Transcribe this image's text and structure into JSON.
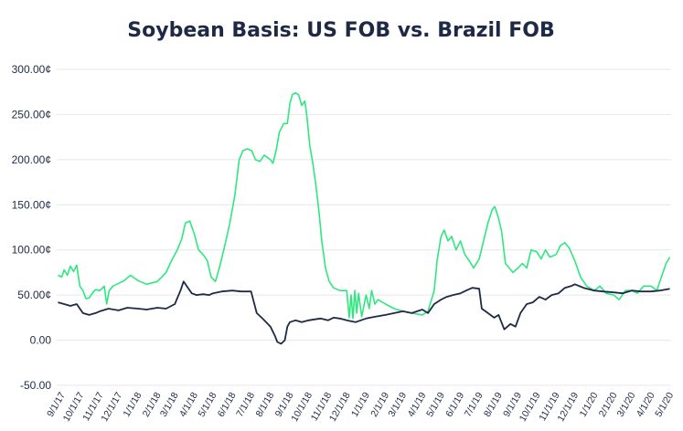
{
  "chart_data": {
    "type": "line",
    "title": "Soybean Basis: US FOB vs. Brazil FOB",
    "xlabel": "",
    "ylabel": "",
    "ylim": [
      -50,
      300
    ],
    "yticks": [
      "-50.00",
      "0.00",
      "50.00¢",
      "100.00¢",
      "150.00¢",
      "200.00¢",
      "250.00¢",
      "300.00¢"
    ],
    "ytick_values": [
      -50,
      0,
      50,
      100,
      150,
      200,
      250,
      300
    ],
    "xticks": [
      "9/1/17",
      "10/1/17",
      "11/1/17",
      "12/1/17",
      "1/1/18",
      "2/1/18",
      "3/1/18",
      "4/1/18",
      "5/1/18",
      "6/1/18",
      "7/1/18",
      "8/1/18",
      "9/1/18",
      "10/1/18",
      "11/1/18",
      "12/1/18",
      "1/1/19",
      "2/1/19",
      "3/1/19",
      "4/1/19",
      "5/1/19",
      "6/1/19",
      "7/1/19",
      "8/1/19",
      "9/1/19",
      "10/1/19",
      "11/1/19",
      "12/1/19",
      "1/1/20",
      "2/1/20",
      "3/1/20",
      "4/1/20",
      "5/1/20"
    ],
    "grid": true,
    "legend": "none",
    "colors": {
      "green_series": "#2ee87f",
      "navy_series": "#1e2a45"
    },
    "series": [
      {
        "color": "#2ee87f",
        "values": [
          [
            "2017-08-26",
            72
          ],
          [
            "2017-09-01",
            70
          ],
          [
            "2017-09-05",
            78
          ],
          [
            "2017-09-10",
            72
          ],
          [
            "2017-09-15",
            82
          ],
          [
            "2017-09-20",
            76
          ],
          [
            "2017-09-25",
            83
          ],
          [
            "2017-09-30",
            60
          ],
          [
            "2017-10-05",
            55
          ],
          [
            "2017-10-10",
            46
          ],
          [
            "2017-10-15",
            47
          ],
          [
            "2017-10-20",
            52
          ],
          [
            "2017-10-25",
            56
          ],
          [
            "2017-11-01",
            55
          ],
          [
            "2017-11-08",
            60
          ],
          [
            "2017-11-12",
            40
          ],
          [
            "2017-11-16",
            55
          ],
          [
            "2017-11-22",
            60
          ],
          [
            "2017-12-01",
            63
          ],
          [
            "2017-12-10",
            66
          ],
          [
            "2017-12-20",
            72
          ],
          [
            "2018-01-01",
            66
          ],
          [
            "2018-01-15",
            62
          ],
          [
            "2018-02-01",
            65
          ],
          [
            "2018-02-15",
            75
          ],
          [
            "2018-02-25",
            90
          ],
          [
            "2018-03-05",
            100
          ],
          [
            "2018-03-12",
            112
          ],
          [
            "2018-03-18",
            130
          ],
          [
            "2018-03-25",
            132
          ],
          [
            "2018-04-01",
            118
          ],
          [
            "2018-04-08",
            100
          ],
          [
            "2018-04-15",
            95
          ],
          [
            "2018-04-22",
            88
          ],
          [
            "2018-04-28",
            70
          ],
          [
            "2018-05-05",
            65
          ],
          [
            "2018-05-12",
            82
          ],
          [
            "2018-05-20",
            105
          ],
          [
            "2018-05-28",
            130
          ],
          [
            "2018-06-05",
            160
          ],
          [
            "2018-06-12",
            200
          ],
          [
            "2018-06-18",
            210
          ],
          [
            "2018-06-25",
            212
          ],
          [
            "2018-07-02",
            210
          ],
          [
            "2018-07-08",
            200
          ],
          [
            "2018-07-15",
            198
          ],
          [
            "2018-07-22",
            205
          ],
          [
            "2018-08-01",
            200
          ],
          [
            "2018-08-05",
            196
          ],
          [
            "2018-08-10",
            210
          ],
          [
            "2018-08-15",
            230
          ],
          [
            "2018-08-22",
            240
          ],
          [
            "2018-08-28",
            240
          ],
          [
            "2018-09-01",
            262
          ],
          [
            "2018-09-05",
            272
          ],
          [
            "2018-09-10",
            274
          ],
          [
            "2018-09-15",
            272
          ],
          [
            "2018-09-20",
            260
          ],
          [
            "2018-09-25",
            265
          ],
          [
            "2018-09-28",
            250
          ],
          [
            "2018-10-03",
            215
          ],
          [
            "2018-10-08",
            195
          ],
          [
            "2018-10-13",
            170
          ],
          [
            "2018-10-18",
            140
          ],
          [
            "2018-10-22",
            110
          ],
          [
            "2018-10-28",
            80
          ],
          [
            "2018-11-03",
            65
          ],
          [
            "2018-11-10",
            58
          ],
          [
            "2018-11-20",
            55
          ],
          [
            "2018-12-01",
            55
          ],
          [
            "2018-12-05",
            25
          ],
          [
            "2018-12-08",
            50
          ],
          [
            "2018-12-11",
            24
          ],
          [
            "2018-12-14",
            55
          ],
          [
            "2018-12-17",
            30
          ],
          [
            "2018-12-20",
            52
          ],
          [
            "2018-12-25",
            26
          ],
          [
            "2019-01-01",
            50
          ],
          [
            "2019-01-06",
            35
          ],
          [
            "2019-01-10",
            55
          ],
          [
            "2019-01-15",
            40
          ],
          [
            "2019-01-20",
            45
          ],
          [
            "2019-02-01",
            40
          ],
          [
            "2019-02-15",
            35
          ],
          [
            "2019-03-01",
            32
          ],
          [
            "2019-03-15",
            30
          ],
          [
            "2019-04-01",
            28
          ],
          [
            "2019-04-10",
            32
          ],
          [
            "2019-04-20",
            55
          ],
          [
            "2019-04-25",
            90
          ],
          [
            "2019-05-01",
            115
          ],
          [
            "2019-05-06",
            122
          ],
          [
            "2019-05-12",
            110
          ],
          [
            "2019-05-18",
            115
          ],
          [
            "2019-05-25",
            100
          ],
          [
            "2019-06-01",
            110
          ],
          [
            "2019-06-08",
            95
          ],
          [
            "2019-06-15",
            88
          ],
          [
            "2019-06-22",
            80
          ],
          [
            "2019-07-01",
            90
          ],
          [
            "2019-07-08",
            110
          ],
          [
            "2019-07-15",
            130
          ],
          [
            "2019-07-22",
            145
          ],
          [
            "2019-07-26",
            148
          ],
          [
            "2019-08-01",
            135
          ],
          [
            "2019-08-06",
            120
          ],
          [
            "2019-08-12",
            85
          ],
          [
            "2019-08-18",
            80
          ],
          [
            "2019-08-24",
            75
          ],
          [
            "2019-09-01",
            80
          ],
          [
            "2019-09-08",
            85
          ],
          [
            "2019-09-15",
            80
          ],
          [
            "2019-09-22",
            100
          ],
          [
            "2019-10-01",
            98
          ],
          [
            "2019-10-08",
            90
          ],
          [
            "2019-10-15",
            100
          ],
          [
            "2019-10-22",
            92
          ],
          [
            "2019-11-01",
            95
          ],
          [
            "2019-11-08",
            105
          ],
          [
            "2019-11-15",
            108
          ],
          [
            "2019-11-22",
            102
          ],
          [
            "2019-12-01",
            88
          ],
          [
            "2019-12-10",
            70
          ],
          [
            "2019-12-20",
            60
          ],
          [
            "2020-01-01",
            55
          ],
          [
            "2020-01-10",
            60
          ],
          [
            "2020-01-20",
            52
          ],
          [
            "2020-02-01",
            50
          ],
          [
            "2020-02-10",
            45
          ],
          [
            "2020-02-20",
            55
          ],
          [
            "2020-03-01",
            55
          ],
          [
            "2020-03-10",
            52
          ],
          [
            "2020-03-20",
            60
          ],
          [
            "2020-04-01",
            60
          ],
          [
            "2020-04-10",
            55
          ],
          [
            "2020-04-15",
            65
          ],
          [
            "2020-04-20",
            75
          ],
          [
            "2020-04-25",
            85
          ],
          [
            "2020-05-01",
            92
          ]
        ]
      },
      {
        "color": "#1e2a45",
        "values": [
          [
            "2017-08-26",
            42
          ],
          [
            "2017-09-05",
            40
          ],
          [
            "2017-09-15",
            38
          ],
          [
            "2017-09-25",
            40
          ],
          [
            "2017-10-05",
            30
          ],
          [
            "2017-10-15",
            28
          ],
          [
            "2017-10-25",
            30
          ],
          [
            "2017-11-01",
            32
          ],
          [
            "2017-11-15",
            35
          ],
          [
            "2017-12-01",
            33
          ],
          [
            "2017-12-15",
            36
          ],
          [
            "2018-01-01",
            35
          ],
          [
            "2018-01-15",
            34
          ],
          [
            "2018-02-01",
            36
          ],
          [
            "2018-02-15",
            35
          ],
          [
            "2018-03-01",
            40
          ],
          [
            "2018-03-10",
            55
          ],
          [
            "2018-03-15",
            65
          ],
          [
            "2018-03-20",
            60
          ],
          [
            "2018-03-28",
            52
          ],
          [
            "2018-04-05",
            50
          ],
          [
            "2018-04-15",
            51
          ],
          [
            "2018-04-25",
            50
          ],
          [
            "2018-05-01",
            52
          ],
          [
            "2018-05-15",
            54
          ],
          [
            "2018-06-01",
            55
          ],
          [
            "2018-06-15",
            54
          ],
          [
            "2018-07-01",
            54
          ],
          [
            "2018-07-10",
            30
          ],
          [
            "2018-07-18",
            25
          ],
          [
            "2018-07-25",
            20
          ],
          [
            "2018-08-01",
            15
          ],
          [
            "2018-08-08",
            5
          ],
          [
            "2018-08-12",
            -2
          ],
          [
            "2018-08-18",
            -4
          ],
          [
            "2018-08-24",
            0
          ],
          [
            "2018-08-28",
            15
          ],
          [
            "2018-09-01",
            20
          ],
          [
            "2018-09-10",
            22
          ],
          [
            "2018-09-20",
            20
          ],
          [
            "2018-10-01",
            22
          ],
          [
            "2018-10-10",
            23
          ],
          [
            "2018-10-20",
            24
          ],
          [
            "2018-11-01",
            22
          ],
          [
            "2018-11-10",
            25
          ],
          [
            "2018-11-20",
            24
          ],
          [
            "2018-12-01",
            22
          ],
          [
            "2018-12-15",
            20
          ],
          [
            "2019-01-01",
            24
          ],
          [
            "2019-01-15",
            26
          ],
          [
            "2019-02-01",
            28
          ],
          [
            "2019-02-15",
            30
          ],
          [
            "2019-03-01",
            32
          ],
          [
            "2019-03-15",
            30
          ],
          [
            "2019-04-01",
            34
          ],
          [
            "2019-04-10",
            30
          ],
          [
            "2019-04-20",
            40
          ],
          [
            "2019-05-01",
            45
          ],
          [
            "2019-05-10",
            48
          ],
          [
            "2019-05-20",
            50
          ],
          [
            "2019-06-01",
            52
          ],
          [
            "2019-06-10",
            55
          ],
          [
            "2019-06-20",
            58
          ],
          [
            "2019-07-01",
            57
          ],
          [
            "2019-07-05",
            35
          ],
          [
            "2019-07-15",
            30
          ],
          [
            "2019-07-25",
            25
          ],
          [
            "2019-08-01",
            28
          ],
          [
            "2019-08-10",
            12
          ],
          [
            "2019-08-20",
            18
          ],
          [
            "2019-08-28",
            15
          ],
          [
            "2019-09-05",
            30
          ],
          [
            "2019-09-15",
            40
          ],
          [
            "2019-09-25",
            42
          ],
          [
            "2019-10-05",
            48
          ],
          [
            "2019-10-15",
            45
          ],
          [
            "2019-10-25",
            50
          ],
          [
            "2019-11-05",
            52
          ],
          [
            "2019-11-15",
            58
          ],
          [
            "2019-11-25",
            60
          ],
          [
            "2019-12-01",
            62
          ],
          [
            "2019-12-15",
            58
          ],
          [
            "2020-01-01",
            55
          ],
          [
            "2020-01-15",
            54
          ],
          [
            "2020-02-01",
            53
          ],
          [
            "2020-02-15",
            52
          ],
          [
            "2020-03-01",
            55
          ],
          [
            "2020-03-15",
            54
          ],
          [
            "2020-04-01",
            54
          ],
          [
            "2020-04-15",
            55
          ],
          [
            "2020-05-01",
            57
          ]
        ]
      }
    ]
  }
}
